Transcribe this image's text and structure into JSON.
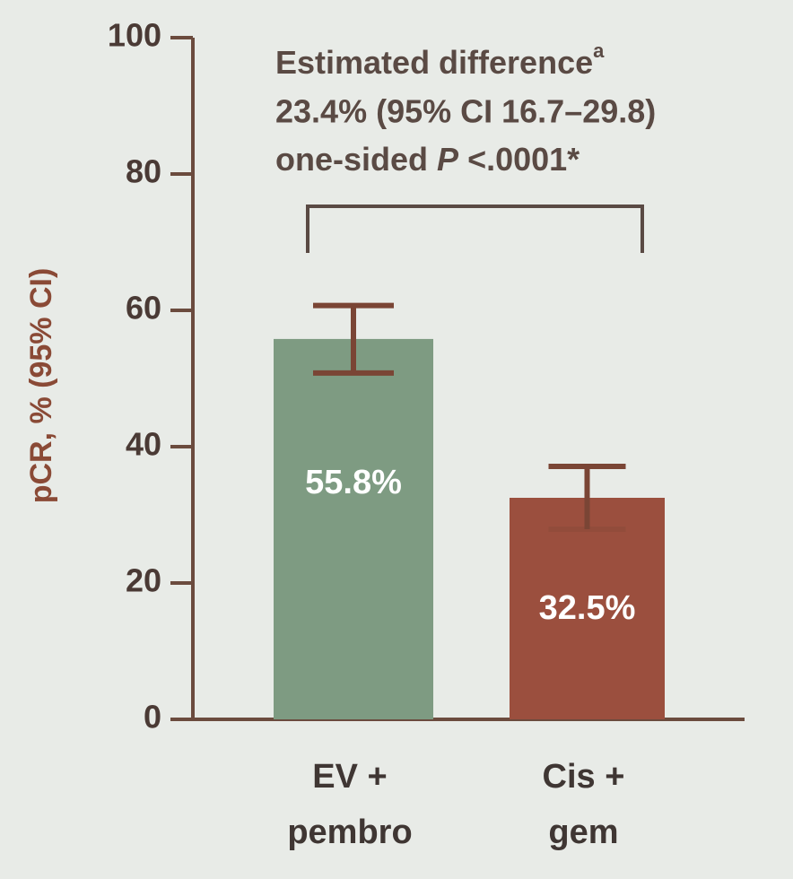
{
  "chart_data": {
    "type": "bar",
    "y_label": "pCR, % (95% CI)",
    "categories": [
      [
        "EV +",
        "pembro"
      ],
      [
        "Cis +",
        "gem"
      ]
    ],
    "series": [
      {
        "colors": [
          "#7e9b82",
          "#9b4f3e"
        ],
        "values": [
          55.8,
          32.5
        ],
        "value_labels": [
          "55.8%",
          "32.5%"
        ],
        "ci_low": [
          50.8,
          27.9
        ],
        "ci_high": [
          60.7,
          37.1
        ]
      }
    ],
    "ylim": [
      0,
      100
    ],
    "yticks": [
      0,
      20,
      40,
      60,
      80,
      100
    ],
    "annotation": {
      "title": "Estimated difference",
      "title_sup": "a",
      "line2": "23.4% (95% CI 16.7–29.8)",
      "line3_prefix": "one-sided",
      "line3_italic": "P",
      "line3_suffix": "<.0001*"
    }
  }
}
